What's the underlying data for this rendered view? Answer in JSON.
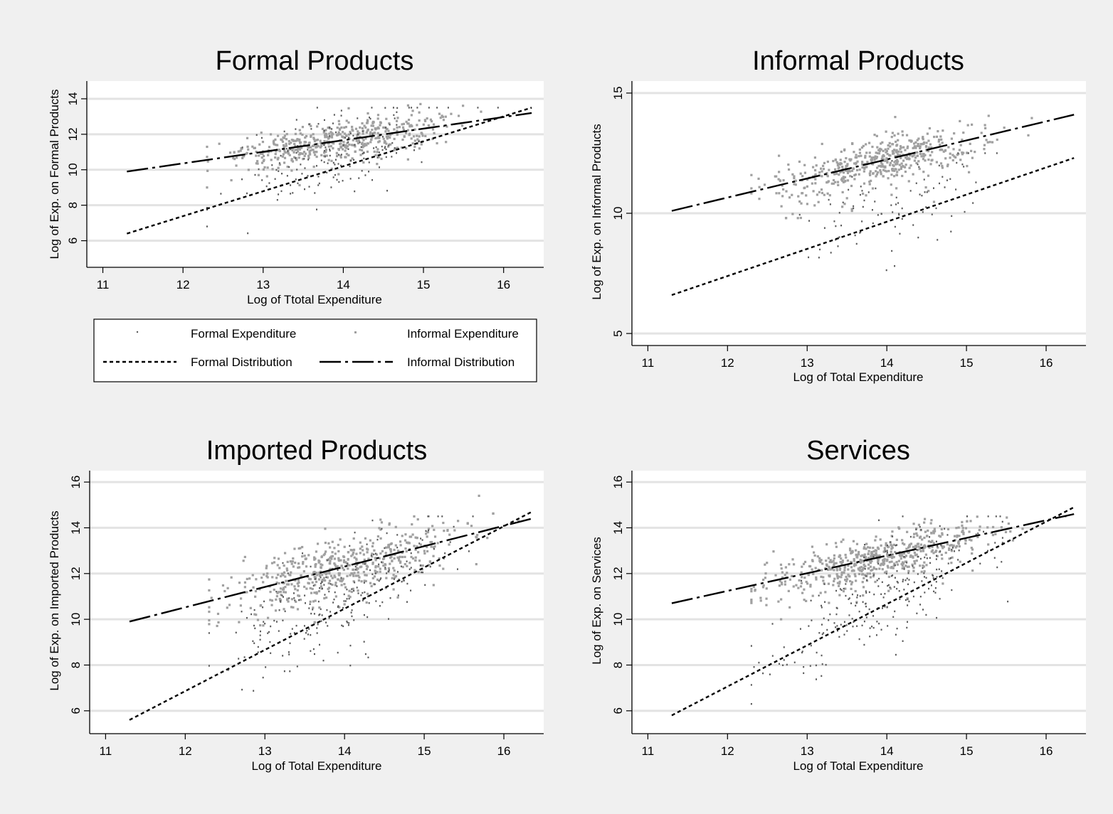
{
  "figure": {
    "background": "#f0f0f0",
    "plot_background": "#ffffff",
    "grid_color": "#e3e3e3",
    "formal_point_color": "#5a5a5a",
    "informal_point_color": "#a0a0a0"
  },
  "legend": {
    "items": [
      {
        "label": "Formal Expenditure",
        "type": "points",
        "color": "#5a5a5a"
      },
      {
        "label": "Informal Expenditure",
        "type": "points",
        "color": "#a0a0a0"
      },
      {
        "label": "Formal Distribution",
        "type": "dashed-line"
      },
      {
        "label": "Informal Distribution",
        "type": "long-dash-dot-line"
      }
    ]
  },
  "chart_data": [
    {
      "type": "scatter",
      "title": "Formal Products",
      "xlabel": "Log of Ttotal Expenditure",
      "ylabel": "Log of Exp. on Formal Products",
      "xlim": [
        10.8,
        16.5
      ],
      "ylim": [
        4.5,
        15.0
      ],
      "xticks": [
        11,
        12,
        13,
        14,
        15,
        16
      ],
      "yticks": [
        6,
        8,
        10,
        12,
        14
      ],
      "grid": true,
      "series": [
        {
          "name": "Formal Distribution",
          "kind": "fit-line",
          "points": [
            [
              11.3,
              6.4
            ],
            [
              16.35,
              13.5
            ]
          ]
        },
        {
          "name": "Informal Distribution",
          "kind": "fit-line",
          "points": [
            [
              11.3,
              9.9
            ],
            [
              16.35,
              13.2
            ]
          ]
        }
      ],
      "scatter_spec": {
        "x_range": [
          12.3,
          16.3
        ],
        "x_center": 13.9,
        "x_sd": 0.65,
        "formal": {
          "n": 170,
          "y_range": [
            5.0,
            13.5
          ],
          "spread": 1.6
        },
        "informal": {
          "n": 520,
          "y_range": [
            9.0,
            14.3
          ],
          "spread": 0.55
        }
      }
    },
    {
      "type": "scatter",
      "title": "Informal Products",
      "xlabel": "Log of Total Expenditure",
      "ylabel": "Log of Exp. on Informal Products",
      "xlim": [
        10.8,
        16.5
      ],
      "ylim": [
        4.5,
        15.5
      ],
      "xticks": [
        11,
        12,
        13,
        14,
        15,
        16
      ],
      "yticks": [
        5,
        10,
        15
      ],
      "grid": true,
      "series": [
        {
          "name": "Formal Distribution",
          "kind": "fit-line",
          "points": [
            [
              11.3,
              6.6
            ],
            [
              16.35,
              12.3
            ]
          ]
        },
        {
          "name": "Informal Distribution",
          "kind": "fit-line",
          "points": [
            [
              11.3,
              10.1
            ],
            [
              16.35,
              14.1
            ]
          ]
        }
      ],
      "scatter_spec": {
        "x_range": [
          12.3,
          16.3
        ],
        "x_center": 13.9,
        "x_sd": 0.65,
        "formal": {
          "n": 90,
          "y_range": [
            5.3,
            12.5
          ],
          "spread": 1.4
        },
        "informal": {
          "n": 520,
          "y_range": [
            9.8,
            14.4
          ],
          "spread": 0.5
        }
      }
    },
    {
      "type": "scatter",
      "title": "Imported Products",
      "xlabel": "Log of Total Expenditure",
      "ylabel": "Log of Exp. on Imported Products",
      "xlim": [
        10.8,
        16.5
      ],
      "ylim": [
        5.0,
        16.5
      ],
      "xticks": [
        11,
        12,
        13,
        14,
        15,
        16
      ],
      "yticks": [
        6,
        8,
        10,
        12,
        14,
        16
      ],
      "grid": true,
      "series": [
        {
          "name": "Formal Distribution",
          "kind": "fit-line",
          "points": [
            [
              11.3,
              5.6
            ],
            [
              16.35,
              14.7
            ]
          ]
        },
        {
          "name": "Informal Distribution",
          "kind": "fit-line",
          "points": [
            [
              11.3,
              9.9
            ],
            [
              16.35,
              14.4
            ]
          ]
        }
      ],
      "scatter_spec": {
        "x_range": [
          12.3,
          16.4
        ],
        "x_center": 13.9,
        "x_sd": 0.7,
        "formal": {
          "n": 230,
          "y_range": [
            6.2,
            14.5
          ],
          "spread": 1.5
        },
        "informal": {
          "n": 560,
          "y_range": [
            8.0,
            15.4
          ],
          "spread": 0.65
        }
      }
    },
    {
      "type": "scatter",
      "title": "Services",
      "xlabel": "Log of Total Expenditure",
      "ylabel": "Log of Exp. on Services",
      "xlim": [
        10.8,
        16.5
      ],
      "ylim": [
        5.0,
        16.5
      ],
      "xticks": [
        11,
        12,
        13,
        14,
        15,
        16
      ],
      "yticks": [
        6,
        8,
        10,
        12,
        14,
        16
      ],
      "grid": true,
      "series": [
        {
          "name": "Formal Distribution",
          "kind": "fit-line",
          "points": [
            [
              11.3,
              5.8
            ],
            [
              16.35,
              14.9
            ]
          ]
        },
        {
          "name": "Informal Distribution",
          "kind": "fit-line",
          "points": [
            [
              11.3,
              10.7
            ],
            [
              16.35,
              14.6
            ]
          ]
        }
      ],
      "scatter_spec": {
        "x_range": [
          12.3,
          16.4
        ],
        "x_center": 13.9,
        "x_sd": 0.7,
        "formal": {
          "n": 260,
          "y_range": [
            6.3,
            14.5
          ],
          "spread": 1.4
        },
        "informal": {
          "n": 580,
          "y_range": [
            10.0,
            15.6
          ],
          "spread": 0.45
        }
      }
    }
  ]
}
